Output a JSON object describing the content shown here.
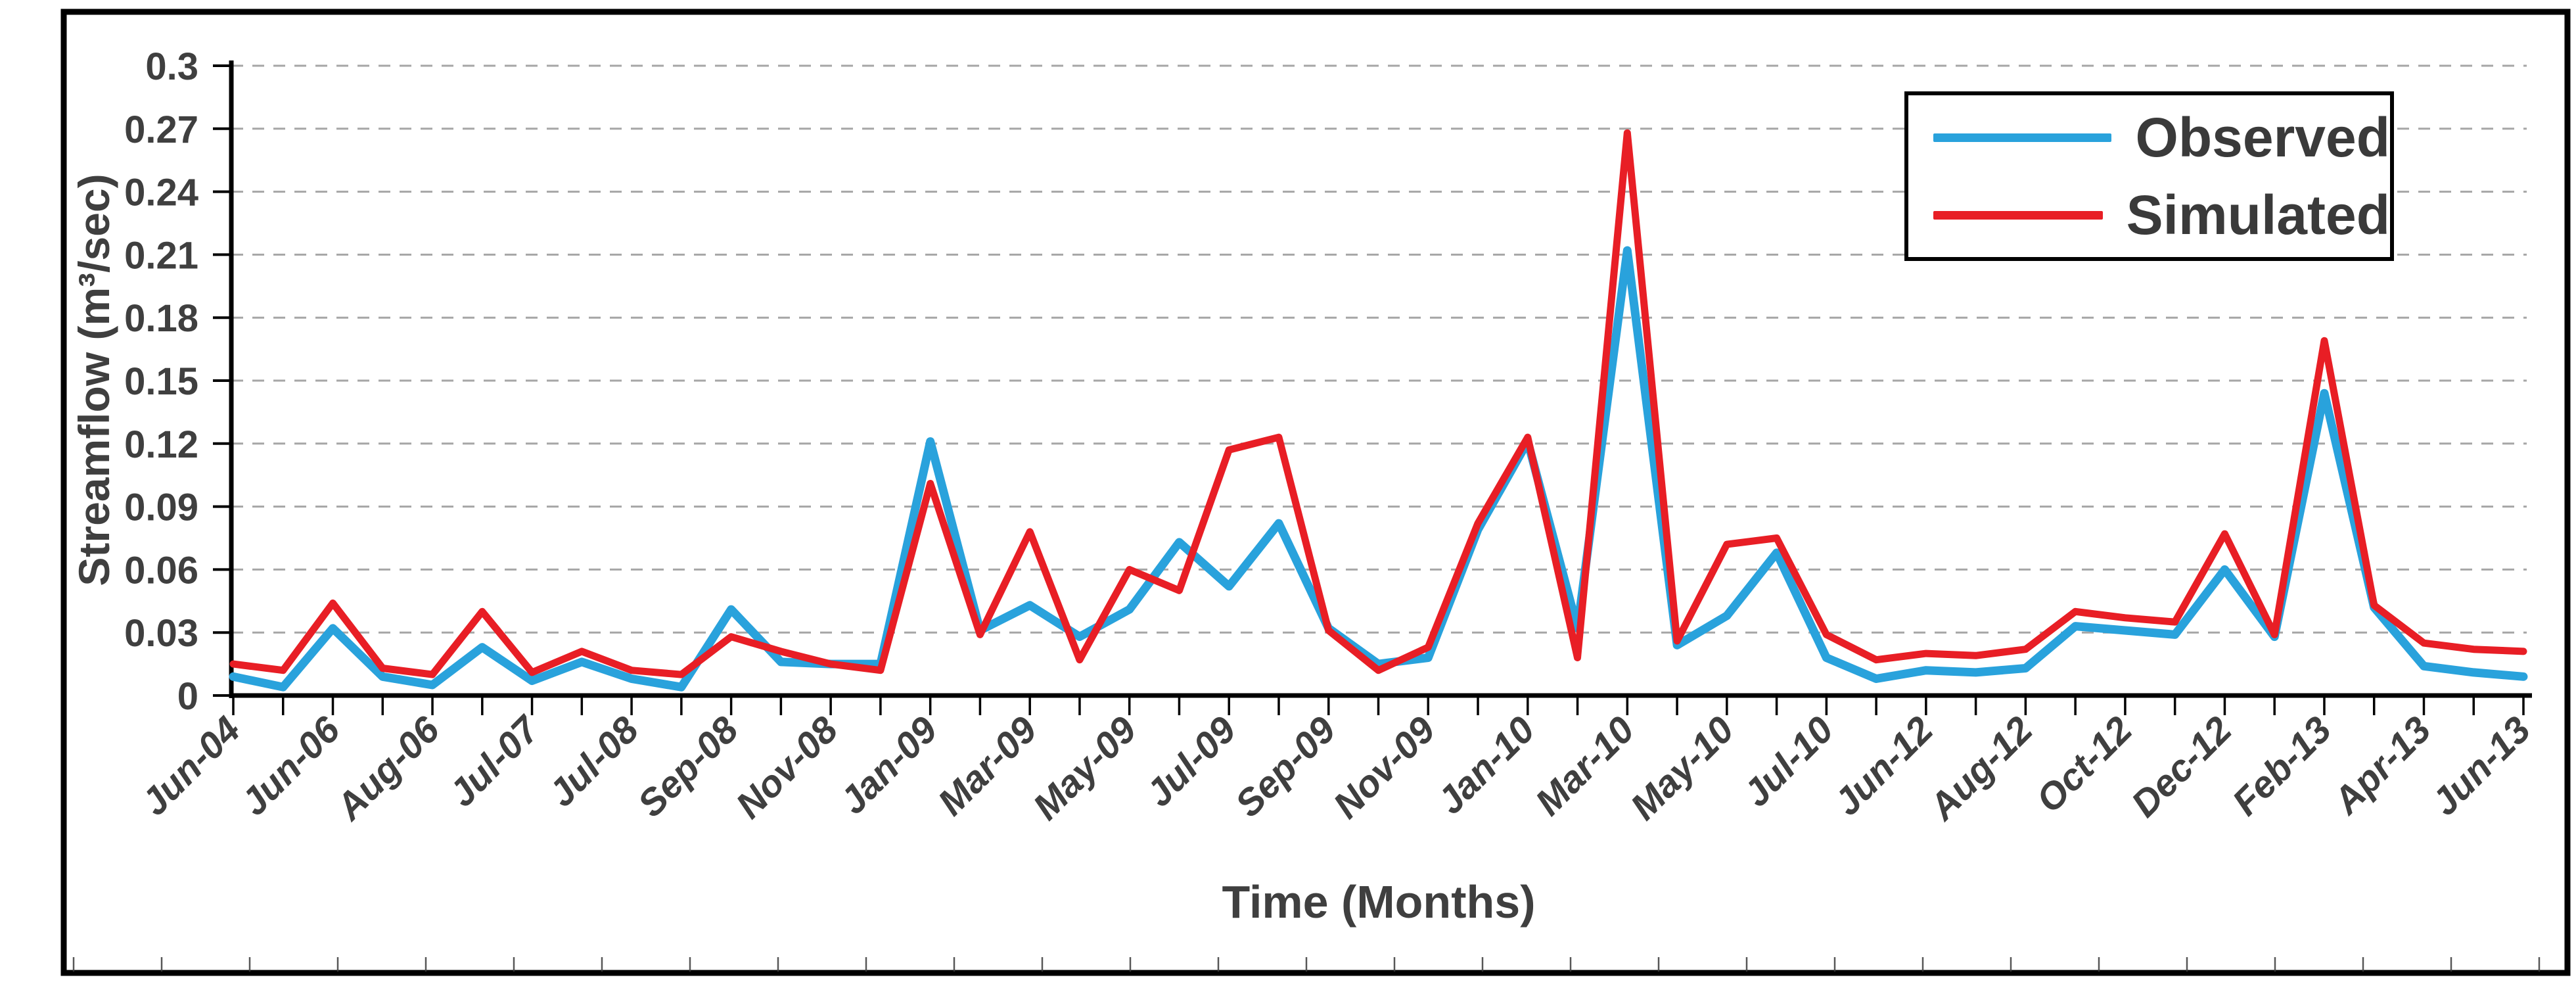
{
  "chart_data": {
    "type": "line",
    "title": "",
    "xlabel": "Time (Months)",
    "ylabel": "Streamflow (m³/sec)",
    "ylim": [
      0,
      0.3
    ],
    "y_ticks": [
      0,
      0.03,
      0.06,
      0.09,
      0.12,
      0.15,
      0.18,
      0.21,
      0.24,
      0.27,
      0.3
    ],
    "y_tick_labels": [
      "0",
      "0.03",
      "0.06",
      "0.09",
      "0.12",
      "0.15",
      "0.18",
      "0.21",
      "0.24",
      "0.27",
      "0.3"
    ],
    "x_tick_labels": [
      "Jun-04",
      "Jun-06",
      "Aug-06",
      "Jul-07",
      "Jul-08",
      "Sep-08",
      "Nov-08",
      "Jan-09",
      "Mar-09",
      "May-09",
      "Jul-09",
      "Sep-09",
      "Nov-09",
      "Jan-10",
      "Mar-10",
      "May-10",
      "Jul-10",
      "Jun-12",
      "Aug-12",
      "Oct-12",
      "Dec-12",
      "Feb-13",
      "Apr-13",
      "Jun-13"
    ],
    "x_labels_every_n_points": 2,
    "grid": "horizontal-dashed",
    "gridline_color": "#a6a6a6",
    "legend_position": "top-right",
    "axis_color": "#000000",
    "text_color": "#3f3f3f",
    "series": [
      {
        "name": "Observed",
        "color": "#29a2dc",
        "values": [
          0.009,
          0.004,
          0.032,
          0.009,
          0.005,
          0.023,
          0.007,
          0.016,
          0.008,
          0.004,
          0.041,
          0.016,
          0.015,
          0.015,
          0.121,
          0.031,
          0.043,
          0.028,
          0.041,
          0.073,
          0.052,
          0.082,
          0.032,
          0.015,
          0.018,
          0.079,
          0.121,
          0.032,
          0.212,
          0.024,
          0.038,
          0.068,
          0.018,
          0.008,
          0.012,
          0.011,
          0.013,
          0.033,
          0.031,
          0.029,
          0.06,
          0.028,
          0.144,
          0.042,
          0.014,
          0.011,
          0.009
        ]
      },
      {
        "name": "Simulated",
        "color": "#e81e25",
        "values": [
          0.015,
          0.012,
          0.044,
          0.013,
          0.01,
          0.04,
          0.011,
          0.021,
          0.012,
          0.01,
          0.028,
          0.021,
          0.015,
          0.012,
          0.101,
          0.029,
          0.078,
          0.017,
          0.06,
          0.05,
          0.117,
          0.123,
          0.031,
          0.012,
          0.023,
          0.082,
          0.123,
          0.018,
          0.268,
          0.026,
          0.072,
          0.075,
          0.029,
          0.017,
          0.02,
          0.019,
          0.022,
          0.04,
          0.037,
          0.035,
          0.077,
          0.029,
          0.169,
          0.043,
          0.025,
          0.022,
          0.021
        ]
      }
    ]
  }
}
